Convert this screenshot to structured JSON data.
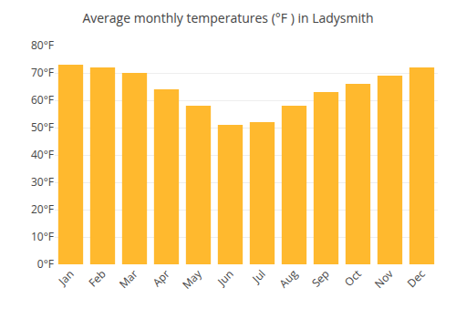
{
  "chart_data": {
    "type": "bar",
    "title": "Average monthly temperatures (°F ) in Ladysmith",
    "categories": [
      "Jan",
      "Feb",
      "Mar",
      "Apr",
      "May",
      "Jun",
      "Jul",
      "Aug",
      "Sep",
      "Oct",
      "Nov",
      "Dec"
    ],
    "values": [
      73,
      72,
      70,
      64,
      58,
      51,
      52,
      58,
      63,
      66,
      69,
      72
    ],
    "color": "#FFB92E",
    "ylim": [
      0,
      80
    ],
    "yticks": [
      {
        "value": 0,
        "label": "0°F"
      },
      {
        "value": 10,
        "label": "10°F"
      },
      {
        "value": 20,
        "label": "20°F"
      },
      {
        "value": 30,
        "label": "30°F"
      },
      {
        "value": 40,
        "label": "40°F"
      },
      {
        "value": 50,
        "label": "50°F"
      },
      {
        "value": 60,
        "label": "60°F"
      },
      {
        "value": 70,
        "label": "70°F"
      },
      {
        "value": 80,
        "label": "80°F"
      }
    ],
    "grid": true
  }
}
